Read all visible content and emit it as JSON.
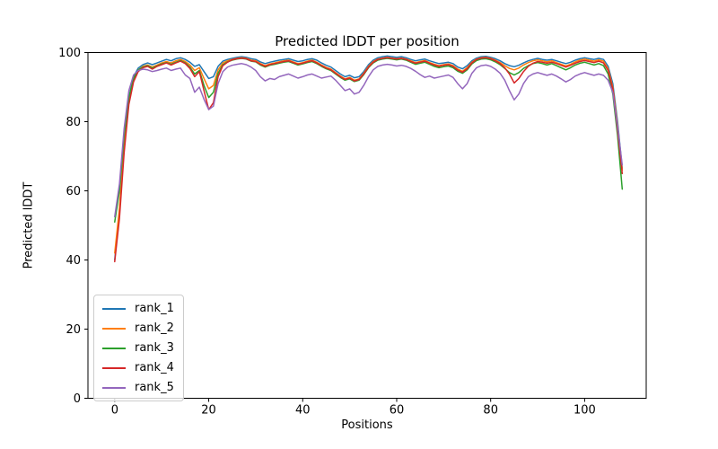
{
  "chart_data": {
    "type": "line",
    "title": "Predicted lDDT per position",
    "xlabel": "Positions",
    "ylabel": "Predicted lDDT",
    "xlim": [
      -5.7,
      113.1
    ],
    "ylim": [
      0,
      100
    ],
    "x_ticks": [
      0,
      20,
      40,
      60,
      80,
      100
    ],
    "y_ticks": [
      0,
      20,
      40,
      60,
      80,
      100
    ],
    "grid": false,
    "legend_position": "lower left",
    "axis_color": "#000000",
    "background_color": "#ffffff",
    "x": [
      0,
      1,
      2,
      3,
      4,
      5,
      6,
      7,
      8,
      9,
      10,
      11,
      12,
      13,
      14,
      15,
      16,
      17,
      18,
      19,
      20,
      21,
      22,
      23,
      24,
      25,
      26,
      27,
      28,
      29,
      30,
      31,
      32,
      33,
      34,
      35,
      36,
      37,
      38,
      39,
      40,
      41,
      42,
      43,
      44,
      45,
      46,
      47,
      48,
      49,
      50,
      51,
      52,
      53,
      54,
      55,
      56,
      57,
      58,
      59,
      60,
      61,
      62,
      63,
      64,
      65,
      66,
      67,
      68,
      69,
      70,
      71,
      72,
      73,
      74,
      75,
      76,
      77,
      78,
      79,
      80,
      81,
      82,
      83,
      84,
      85,
      86,
      87,
      88,
      89,
      90,
      91,
      92,
      93,
      94,
      95,
      96,
      97,
      98,
      99,
      100,
      101,
      102,
      103,
      104,
      105,
      106,
      107,
      108
    ],
    "series": [
      {
        "name": "rank_1",
        "color": "#1f77b4",
        "values": [
          40,
          54,
          74,
          87,
          93,
          95.5,
          96.5,
          97,
          96.5,
          97,
          97.5,
          98,
          97.6,
          98.2,
          98.5,
          98,
          97.2,
          96,
          96.5,
          94.5,
          92.5,
          93,
          96,
          97.5,
          98,
          98.3,
          98.6,
          98.8,
          98.6,
          98.2,
          98,
          97.3,
          96.8,
          97.2,
          97.5,
          97.8,
          98,
          98.2,
          97.8,
          97.4,
          97.6,
          98,
          98.2,
          97.8,
          97,
          96.3,
          95.8,
          94.8,
          93.8,
          93,
          93.4,
          92.7,
          93,
          94.5,
          96.5,
          97.8,
          98.5,
          98.8,
          99,
          98.8,
          98.6,
          98.8,
          98.5,
          98,
          97.6,
          97.9,
          98.1,
          97.6,
          97.2,
          96.8,
          97,
          97.2,
          96.8,
          95.8,
          95.3,
          96.2,
          97.6,
          98.4,
          98.8,
          98.9,
          98.6,
          98.2,
          97.6,
          96.8,
          96.2,
          95.9,
          96.3,
          97,
          97.6,
          98,
          98.3,
          98,
          97.8,
          98,
          97.6,
          97.2,
          96.8,
          97.2,
          97.8,
          98.2,
          98.5,
          98.2,
          98,
          98.3,
          98,
          96,
          91,
          80,
          66.5
        ]
      },
      {
        "name": "rank_2",
        "color": "#ff7f0e",
        "values": [
          42,
          55,
          73,
          86,
          92,
          95,
          96,
          96.4,
          95.8,
          96.4,
          97,
          97.4,
          97,
          97.6,
          98,
          97.4,
          96.4,
          94.8,
          95.6,
          92.5,
          89.5,
          90.5,
          95,
          97,
          97.6,
          98,
          98.3,
          98.5,
          98.3,
          97.8,
          97.6,
          96.8,
          96.2,
          96.7,
          97,
          97.3,
          97.6,
          97.8,
          97.3,
          96.8,
          97.1,
          97.5,
          97.8,
          97.2,
          96.4,
          95.7,
          95.2,
          94.2,
          93.2,
          92.4,
          92.8,
          92,
          92.4,
          94,
          96,
          97.4,
          98.1,
          98.4,
          98.6,
          98.4,
          98.2,
          98.4,
          98.1,
          97.6,
          97.1,
          97.4,
          97.7,
          97.1,
          96.6,
          96.2,
          96.5,
          96.7,
          96.2,
          95.2,
          94.6,
          95.6,
          97.2,
          98.1,
          98.5,
          98.6,
          98.3,
          97.8,
          97.1,
          96.2,
          95.4,
          95,
          95.5,
          96.4,
          97.1,
          97.6,
          97.9,
          97.6,
          97.3,
          97.6,
          97.1,
          96.6,
          96.1,
          96.6,
          97.3,
          97.8,
          98.1,
          97.8,
          97.5,
          97.9,
          97.5,
          95.3,
          90,
          79,
          66
        ]
      },
      {
        "name": "rank_3",
        "color": "#2ca02c",
        "values": [
          51,
          60,
          76,
          87,
          92.5,
          95,
          95.8,
          96.2,
          95.5,
          96.1,
          96.7,
          97.1,
          96.6,
          97.2,
          97.7,
          97,
          95.8,
          93.8,
          94.8,
          90.5,
          87,
          88.5,
          94,
          96.5,
          97.3,
          97.8,
          98.1,
          98.3,
          98.1,
          97.5,
          97.3,
          96.4,
          95.8,
          96.3,
          96.6,
          96.9,
          97.2,
          97.4,
          96.9,
          96.4,
          96.7,
          97.1,
          97.4,
          96.8,
          96,
          95.3,
          94.8,
          93.8,
          92.8,
          92,
          92.4,
          91.6,
          92,
          93.6,
          95.6,
          97,
          97.8,
          98.1,
          98.3,
          98.1,
          97.9,
          98.1,
          97.8,
          97.2,
          96.6,
          96.9,
          97.2,
          96.6,
          96,
          95.6,
          95.9,
          96.1,
          95.6,
          94.6,
          94,
          95,
          96.7,
          97.7,
          98.1,
          98.2,
          97.9,
          97.3,
          96.5,
          95.4,
          94.2,
          93.5,
          94.2,
          95.4,
          96.2,
          96.8,
          97.1,
          96.8,
          96.4,
          96.8,
          96.2,
          95.6,
          95,
          95.6,
          96.4,
          96.9,
          97.2,
          96.8,
          96.4,
          96.8,
          96.2,
          93.8,
          88,
          76,
          60.5
        ]
      },
      {
        "name": "rank_4",
        "color": "#d62728",
        "values": [
          39.5,
          52,
          71,
          85,
          91.5,
          94.5,
          95.6,
          96,
          95.2,
          96,
          96.5,
          97,
          96.4,
          97,
          97.5,
          96.8,
          95.4,
          93,
          94.5,
          89,
          83.5,
          85.5,
          93,
          96.2,
          97.2,
          97.9,
          98.2,
          98.4,
          98.2,
          97.6,
          97.4,
          96.6,
          96,
          96.5,
          96.8,
          97.1,
          97.4,
          97.6,
          97.1,
          96.6,
          96.9,
          97.3,
          97.6,
          97,
          96.2,
          95.5,
          95,
          94,
          93,
          92.2,
          92.6,
          91.8,
          92.2,
          93.8,
          95.8,
          97.2,
          98,
          98.3,
          98.5,
          98.3,
          98.1,
          98.3,
          98,
          97.4,
          96.9,
          97.2,
          97.5,
          96.9,
          96.4,
          96,
          96.3,
          96.5,
          96,
          94.9,
          94.3,
          95.3,
          97,
          98,
          98.4,
          98.5,
          98.2,
          97.6,
          96.8,
          95.6,
          93.8,
          91.2,
          92.5,
          94.5,
          96,
          96.9,
          97.4,
          97.2,
          96.9,
          97.2,
          96.8,
          96.3,
          95.8,
          96.3,
          96.9,
          97.4,
          97.7,
          97.4,
          97.1,
          97.5,
          97,
          94.8,
          89.5,
          77.5,
          65
        ]
      },
      {
        "name": "rank_5",
        "color": "#9467bd",
        "values": [
          52.5,
          62,
          78,
          89,
          93.5,
          94.8,
          95.2,
          95,
          94.5,
          94.8,
          95.2,
          95.5,
          94.8,
          95.2,
          95.5,
          93.5,
          92.5,
          88.5,
          90,
          86.5,
          83.5,
          84.5,
          91,
          94.5,
          95.8,
          96.3,
          96.6,
          96.8,
          96.5,
          95.8,
          94.8,
          93,
          91.8,
          92.5,
          92.2,
          93,
          93.4,
          93.8,
          93.2,
          92.6,
          93,
          93.5,
          93.8,
          93.2,
          92.6,
          92.9,
          93.2,
          92,
          90.5,
          89,
          89.5,
          88,
          88.5,
          90.5,
          93,
          95,
          96,
          96.4,
          96.6,
          96.4,
          96.1,
          96.3,
          96,
          95.4,
          94.6,
          93.6,
          92.8,
          93.2,
          92.6,
          92.9,
          93.2,
          93.5,
          92.8,
          91,
          89.5,
          91,
          94,
          95.6,
          96.2,
          96.4,
          96,
          95.2,
          94,
          92,
          89,
          86.3,
          88,
          91,
          93,
          93.8,
          94.2,
          93.8,
          93.4,
          93.8,
          93.2,
          92.4,
          91.5,
          92.2,
          93.2,
          93.8,
          94.2,
          93.8,
          93.4,
          93.8,
          93.4,
          92,
          88.5,
          78.5,
          67.5
        ]
      }
    ]
  }
}
